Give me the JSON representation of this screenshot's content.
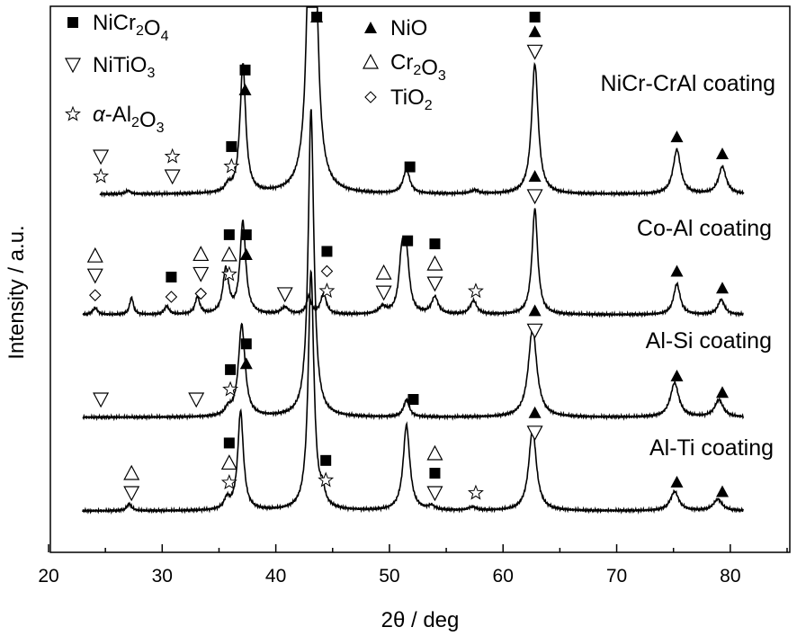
{
  "chart_data": {
    "type": "line",
    "xlabel": "2θ / deg",
    "ylabel": "Intensity / a.u.",
    "xlim": [
      20,
      85
    ],
    "x_ticks": [
      20,
      30,
      40,
      50,
      60,
      70,
      80
    ],
    "x_tick_labels": [
      "20",
      "30",
      "40",
      "50",
      "60",
      "70",
      "80"
    ],
    "yticks_shown": false,
    "legend": [
      {
        "symbol": "filled-square",
        "label": "NiCr2O4"
      },
      {
        "symbol": "down-triangle",
        "label": "NiTiO3"
      },
      {
        "symbol": "star",
        "label": "α-Al2O3"
      },
      {
        "symbol": "filled-triangle",
        "label": "NiO"
      },
      {
        "symbol": "open-triangle",
        "label": "Cr2O3"
      },
      {
        "symbol": "diamond",
        "label": "TiO2"
      }
    ],
    "series": [
      {
        "name": "NiCr-CrAl coating",
        "peaks": [
          {
            "x": 27.0,
            "h": 0.05,
            "w": 0.25
          },
          {
            "x": 35.8,
            "h": 0.1,
            "w": 0.3
          },
          {
            "x": 37.1,
            "h": 1.9,
            "w": 0.3
          },
          {
            "x": 43.2,
            "h": 9.5,
            "w": 0.3
          },
          {
            "x": 51.5,
            "h": 0.35,
            "w": 0.35
          },
          {
            "x": 57.5,
            "h": 0.05,
            "w": 0.4
          },
          {
            "x": 62.8,
            "h": 1.9,
            "w": 0.35
          },
          {
            "x": 75.3,
            "h": 0.65,
            "w": 0.4
          },
          {
            "x": 79.3,
            "h": 0.4,
            "w": 0.4
          }
        ],
        "annotations": [
          {
            "x": 24.6,
            "symbols": [
              "star",
              "down-triangle"
            ]
          },
          {
            "x": 30.9,
            "symbols": [
              "down-triangle",
              "star"
            ]
          },
          {
            "x": 36.1,
            "symbols": [
              "star",
              "filled-square"
            ]
          },
          {
            "x": 37.3,
            "symbols": [
              "filled-triangle",
              "filled-square"
            ]
          },
          {
            "x": 43.6,
            "symbols": [
              "filled-square",
              "filled-triangle"
            ]
          },
          {
            "x": 51.8,
            "symbols": [
              "filled-square"
            ]
          },
          {
            "x": 62.8,
            "symbols": [
              "down-triangle",
              "filled-triangle",
              "filled-square"
            ]
          },
          {
            "x": 75.3,
            "symbols": [
              "filled-triangle"
            ]
          },
          {
            "x": 79.3,
            "symbols": [
              "filled-triangle"
            ]
          }
        ]
      },
      {
        "name": "Co-Al coating",
        "peaks": [
          {
            "x": 24.1,
            "h": 0.1,
            "w": 0.25
          },
          {
            "x": 27.3,
            "h": 0.25,
            "w": 0.2
          },
          {
            "x": 30.4,
            "h": 0.12,
            "w": 0.25
          },
          {
            "x": 33.1,
            "h": 0.25,
            "w": 0.25
          },
          {
            "x": 35.6,
            "h": 0.65,
            "w": 0.3
          },
          {
            "x": 37.1,
            "h": 1.35,
            "w": 0.3
          },
          {
            "x": 40.8,
            "h": 0.1,
            "w": 0.4
          },
          {
            "x": 42.9,
            "h": 0.25,
            "w": 0.25
          },
          {
            "x": 44.2,
            "h": 0.3,
            "w": 0.3
          },
          {
            "x": 49.4,
            "h": 0.1,
            "w": 0.4
          },
          {
            "x": 51.1,
            "h": 0.8,
            "w": 0.3
          },
          {
            "x": 51.5,
            "h": 0.75,
            "w": 0.3
          },
          {
            "x": 54.0,
            "h": 0.25,
            "w": 0.35
          },
          {
            "x": 57.4,
            "h": 0.2,
            "w": 0.35
          },
          {
            "x": 62.8,
            "h": 1.55,
            "w": 0.3
          },
          {
            "x": 75.3,
            "h": 0.45,
            "w": 0.35
          },
          {
            "x": 79.2,
            "h": 0.22,
            "w": 0.35
          }
        ],
        "annotations": [
          {
            "x": 24.1,
            "symbols": [
              "diamond",
              "down-triangle",
              "open-triangle"
            ]
          },
          {
            "x": 30.8,
            "symbols": [
              "diamond",
              "filled-square"
            ]
          },
          {
            "x": 33.4,
            "symbols": [
              "diamond",
              "down-triangle",
              "open-triangle"
            ]
          },
          {
            "x": 35.9,
            "symbols": [
              "star",
              "open-triangle",
              "filled-square"
            ]
          },
          {
            "x": 37.4,
            "symbols": [
              "filled-triangle",
              "filled-square"
            ]
          },
          {
            "x": 40.8,
            "symbols": [
              "down-triangle"
            ]
          },
          {
            "x": 44.5,
            "symbols": [
              "star",
              "diamond",
              "filled-square"
            ]
          },
          {
            "x": 49.5,
            "symbols": [
              "down-triangle",
              "open-triangle"
            ]
          },
          {
            "x": 51.6,
            "symbols": [
              "filled-square"
            ]
          },
          {
            "x": 54.0,
            "symbols": [
              "down-triangle",
              "open-triangle",
              "filled-square"
            ]
          },
          {
            "x": 57.6,
            "symbols": [
              "star"
            ]
          },
          {
            "x": 62.8,
            "symbols": [
              "down-triangle",
              "filled-triangle"
            ]
          },
          {
            "x": 75.3,
            "symbols": [
              "filled-triangle"
            ]
          },
          {
            "x": 79.3,
            "symbols": [
              "filled-triangle"
            ]
          }
        ]
      },
      {
        "name": "Al-Si coating",
        "peaks": [
          {
            "x": 35.8,
            "h": 0.1,
            "w": 0.3
          },
          {
            "x": 37.0,
            "h": 1.35,
            "w": 0.35
          },
          {
            "x": 43.1,
            "h": 4.5,
            "w": 0.3
          },
          {
            "x": 51.5,
            "h": 0.25,
            "w": 0.3
          },
          {
            "x": 62.6,
            "h": 1.3,
            "w": 0.45
          },
          {
            "x": 75.1,
            "h": 0.5,
            "w": 0.45
          },
          {
            "x": 79.0,
            "h": 0.25,
            "w": 0.45
          }
        ],
        "annotations": [
          {
            "x": 24.6,
            "symbols": [
              "down-triangle"
            ]
          },
          {
            "x": 33.0,
            "symbols": [
              "down-triangle"
            ]
          },
          {
            "x": 36.0,
            "symbols": [
              "star",
              "filled-square"
            ]
          },
          {
            "x": 37.4,
            "symbols": [
              "filled-triangle",
              "filled-square"
            ]
          },
          {
            "x": 52.1,
            "symbols": [
              "filled-square"
            ]
          },
          {
            "x": 62.8,
            "symbols": [
              "down-triangle",
              "filled-triangle"
            ]
          },
          {
            "x": 75.3,
            "symbols": [
              "filled-triangle"
            ]
          },
          {
            "x": 79.3,
            "symbols": [
              "filled-triangle"
            ]
          }
        ]
      },
      {
        "name": "Al-Ti coating",
        "peaks": [
          {
            "x": 27.1,
            "h": 0.1,
            "w": 0.25
          },
          {
            "x": 35.7,
            "h": 0.15,
            "w": 0.3
          },
          {
            "x": 36.9,
            "h": 1.45,
            "w": 0.3
          },
          {
            "x": 43.1,
            "h": 3.5,
            "w": 0.3
          },
          {
            "x": 44.1,
            "h": 0.2,
            "w": 0.25
          },
          {
            "x": 51.5,
            "h": 1.25,
            "w": 0.35
          },
          {
            "x": 53.7,
            "h": 0.06,
            "w": 0.35
          },
          {
            "x": 57.3,
            "h": 0.05,
            "w": 0.4
          },
          {
            "x": 62.6,
            "h": 1.2,
            "w": 0.4
          },
          {
            "x": 75.1,
            "h": 0.28,
            "w": 0.45
          },
          {
            "x": 78.9,
            "h": 0.17,
            "w": 0.45
          }
        ],
        "annotations": [
          {
            "x": 27.3,
            "symbols": [
              "down-triangle",
              "open-triangle"
            ]
          },
          {
            "x": 35.9,
            "symbols": [
              "star",
              "open-triangle",
              "filled-square"
            ]
          },
          {
            "x": 44.4,
            "symbols": [
              "star",
              "filled-square"
            ]
          },
          {
            "x": 54.0,
            "symbols": [
              "down-triangle",
              "filled-square",
              "open-triangle"
            ]
          },
          {
            "x": 57.6,
            "symbols": [
              "star"
            ]
          },
          {
            "x": 62.8,
            "symbols": [
              "down-triangle",
              "filled-triangle"
            ]
          },
          {
            "x": 75.3,
            "symbols": [
              "filled-triangle"
            ]
          },
          {
            "x": 79.3,
            "symbols": [
              "filled-triangle"
            ]
          }
        ]
      }
    ]
  }
}
